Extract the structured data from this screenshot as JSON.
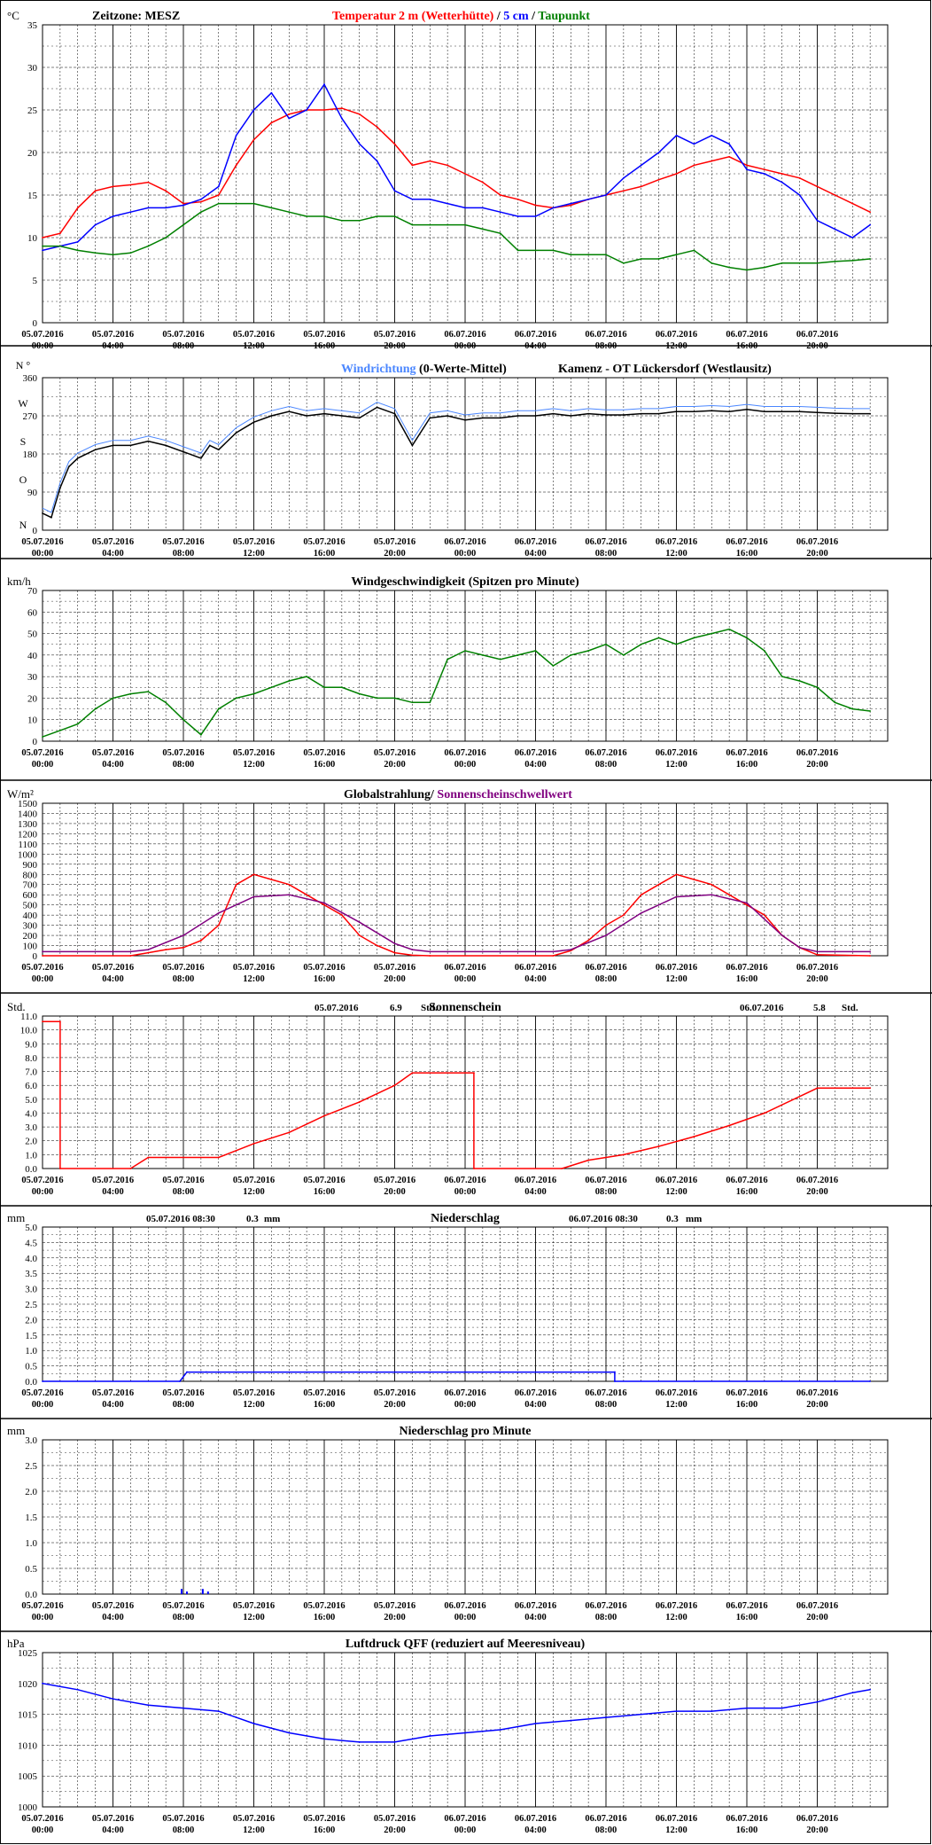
{
  "x_ticks": [
    {
      "date": "05.07.2016",
      "time": "00:00"
    },
    {
      "date": "05.07.2016",
      "time": "04:00"
    },
    {
      "date": "05.07.2016",
      "time": "08:00"
    },
    {
      "date": "05.07.2016",
      "time": "12:00"
    },
    {
      "date": "05.07.2016",
      "time": "16:00"
    },
    {
      "date": "05.07.2016",
      "time": "20:00"
    },
    {
      "date": "06.07.2016",
      "time": "00:00"
    },
    {
      "date": "06.07.2016",
      "time": "04:00"
    },
    {
      "date": "06.07.2016",
      "time": "08:00"
    },
    {
      "date": "06.07.2016",
      "time": "12:00"
    },
    {
      "date": "06.07.2016",
      "time": "16:00"
    },
    {
      "date": "06.07.2016",
      "time": "20:00"
    }
  ],
  "colors": {
    "red": "#ff0000",
    "blue": "#0000ff",
    "green": "#008000",
    "purple": "#800080",
    "black": "#000000",
    "lightblue": "#4a86ff"
  },
  "chart_data": [
    {
      "type": "line",
      "unit": "°C",
      "ylim": [
        0,
        35
      ],
      "yticks": [
        "0",
        "5",
        "10",
        "15",
        "20",
        "25",
        "30",
        "35"
      ],
      "grid": true,
      "timezone": "Zeitzone: MESZ",
      "title_parts": [
        {
          "text": "Temperatur 2 m (Wetterhütte)",
          "color": "#ff0000"
        },
        {
          "text": "/",
          "color": "#000000"
        },
        {
          "text": "5 cm",
          "color": "#0000ff"
        },
        {
          "text": "/",
          "color": "#000000"
        },
        {
          "text": "Taupunkt",
          "color": "#008000"
        }
      ],
      "series": [
        {
          "name": "Temperatur 2 m (Wetterhütte)",
          "color": "#ff0000",
          "x": [
            0,
            1,
            2,
            3,
            4,
            5,
            6,
            7,
            8,
            9,
            10,
            11,
            12,
            13,
            14,
            15,
            16,
            17,
            18,
            19,
            20,
            21,
            22,
            23,
            24,
            25,
            26,
            27,
            28,
            29,
            30,
            31,
            32,
            33,
            34,
            35,
            36,
            37,
            38,
            39,
            40,
            41,
            42,
            43,
            44,
            45,
            46,
            47
          ],
          "y": [
            10,
            10.5,
            13.5,
            15.5,
            16,
            16.2,
            16.5,
            15.5,
            14,
            14.2,
            15,
            18.5,
            21.5,
            23.5,
            24.5,
            25,
            25,
            25.2,
            24.5,
            23,
            21,
            18.5,
            19,
            18.5,
            17.5,
            16.5,
            15,
            14.5,
            13.8,
            13.5,
            13.8,
            14.5,
            15,
            15.5,
            16,
            16.8,
            17.5,
            18.5,
            19,
            19.5,
            18.5,
            18,
            17.5,
            17,
            16,
            15,
            14,
            13
          ]
        },
        {
          "name": "5 cm",
          "color": "#0000ff",
          "x": [
            0,
            1,
            2,
            3,
            4,
            5,
            6,
            7,
            8,
            9,
            10,
            11,
            12,
            13,
            14,
            15,
            16,
            17,
            18,
            19,
            20,
            21,
            22,
            23,
            24,
            25,
            26,
            27,
            28,
            29,
            30,
            31,
            32,
            33,
            34,
            35,
            36,
            37,
            38,
            39,
            40,
            41,
            42,
            43,
            44,
            45,
            46,
            47
          ],
          "y": [
            8.5,
            9,
            9.5,
            11.5,
            12.5,
            13,
            13.5,
            13.5,
            13.8,
            14.5,
            16,
            22,
            25,
            27,
            24,
            25,
            28,
            24,
            21,
            19,
            15.5,
            14.5,
            14.5,
            14,
            13.5,
            13.5,
            13,
            12.5,
            12.5,
            13.5,
            14,
            14.5,
            15,
            17,
            18.5,
            20,
            22,
            21,
            22,
            21,
            18,
            17.5,
            16.5,
            15,
            12,
            11,
            10,
            11.5
          ]
        },
        {
          "name": "Taupunkt",
          "color": "#008000",
          "x": [
            0,
            1,
            2,
            3,
            4,
            5,
            6,
            7,
            8,
            9,
            10,
            11,
            12,
            13,
            14,
            15,
            16,
            17,
            18,
            19,
            20,
            21,
            22,
            23,
            24,
            25,
            26,
            27,
            28,
            29,
            30,
            31,
            32,
            33,
            34,
            35,
            36,
            37,
            38,
            39,
            40,
            41,
            42,
            43,
            44,
            45,
            46,
            47
          ],
          "y": [
            9,
            9,
            8.5,
            8.2,
            8,
            8.2,
            9,
            10,
            11.5,
            13,
            14,
            14,
            14,
            13.5,
            13,
            12.5,
            12.5,
            12,
            12,
            12.5,
            12.5,
            11.5,
            11.5,
            11.5,
            11.5,
            11,
            10.5,
            8.5,
            8.5,
            8.5,
            8,
            8,
            8,
            7,
            7.5,
            7.5,
            8,
            8.5,
            7,
            6.5,
            6.2,
            6.5,
            7,
            7,
            7,
            7.2,
            7.3,
            7.5
          ]
        }
      ]
    },
    {
      "type": "line",
      "unit": "360",
      "ylim": [
        0,
        360
      ],
      "yticks": [
        "0",
        "90",
        "180",
        "270",
        "360"
      ],
      "ydirs": [
        "N",
        "O",
        "S",
        "W",
        "N °"
      ],
      "grid": true,
      "title_parts": [
        {
          "text": "Windrichtung",
          "color": "#4a86ff"
        },
        {
          "text": "(0-Werte-Mittel)",
          "color": "#000000"
        }
      ],
      "station": "Kamenz - OT Lückersdorf (Westlausitz)",
      "series": [
        {
          "name": "Windrichtung",
          "color": "#000000",
          "x": [
            0,
            0.5,
            1,
            1.5,
            2,
            3,
            4,
            5,
            6,
            7,
            8,
            9,
            9.5,
            10,
            11,
            12,
            13,
            14,
            15,
            16,
            17,
            18,
            19,
            20,
            21,
            22,
            23,
            24,
            25,
            26,
            27,
            28,
            29,
            30,
            31,
            32,
            33,
            34,
            35,
            36,
            37,
            38,
            39,
            40,
            41,
            42,
            43,
            44,
            45,
            46,
            47
          ],
          "y": [
            40,
            30,
            100,
            150,
            170,
            190,
            200,
            200,
            210,
            200,
            185,
            170,
            200,
            190,
            230,
            255,
            270,
            280,
            270,
            275,
            270,
            265,
            290,
            275,
            200,
            265,
            270,
            260,
            265,
            265,
            270,
            270,
            275,
            270,
            275,
            272,
            272,
            275,
            275,
            280,
            280,
            282,
            280,
            285,
            280,
            280,
            280,
            278,
            276,
            275,
            275
          ]
        }
      ]
    },
    {
      "type": "line",
      "unit": "km/h",
      "ylim": [
        0,
        70
      ],
      "yticks": [
        "0",
        "10",
        "20",
        "30",
        "40",
        "50",
        "60",
        "70"
      ],
      "grid": true,
      "title": "Windgeschwindigkeit (Spitzen pro Minute)",
      "series": [
        {
          "name": "Windgeschwindigkeit",
          "color": "#008000",
          "x": [
            0,
            1,
            2,
            3,
            4,
            5,
            6,
            7,
            8,
            9,
            10,
            11,
            12,
            13,
            14,
            15,
            16,
            17,
            18,
            19,
            20,
            21,
            22,
            23,
            24,
            25,
            26,
            27,
            28,
            29,
            30,
            31,
            32,
            33,
            34,
            35,
            36,
            37,
            38,
            39,
            40,
            41,
            42,
            43,
            44,
            45,
            46,
            47
          ],
          "y": [
            2,
            5,
            8,
            15,
            20,
            22,
            23,
            18,
            10,
            3,
            15,
            20,
            22,
            25,
            28,
            30,
            25,
            25,
            22,
            20,
            20,
            18,
            18,
            38,
            42,
            40,
            38,
            40,
            42,
            35,
            40,
            42,
            45,
            40,
            45,
            48,
            45,
            48,
            50,
            52,
            48,
            42,
            30,
            28,
            25,
            18,
            15,
            14
          ]
        }
      ]
    },
    {
      "type": "line",
      "unit": "W/m²",
      "ylim": [
        0,
        1500
      ],
      "yticks": [
        "0",
        "100",
        "200",
        "300",
        "400",
        "500",
        "600",
        "700",
        "800",
        "900",
        "1000",
        "1100",
        "1200",
        "1300",
        "1400",
        "1500"
      ],
      "grid": true,
      "title_parts": [
        {
          "text": "Globalstrahlung/",
          "color": "#000000"
        },
        {
          "text": "Sonnenscheinschwellwert",
          "color": "#800080"
        }
      ],
      "series": [
        {
          "name": "Globalstrahlung",
          "color": "#ff0000",
          "x": [
            0,
            5,
            6,
            7,
            8,
            9,
            10,
            11,
            12,
            13,
            14,
            15,
            16,
            17,
            18,
            19,
            20,
            21,
            22,
            29,
            30,
            31,
            32,
            33,
            34,
            35,
            36,
            37,
            38,
            39,
            40,
            41,
            42,
            43,
            44,
            47
          ],
          "y": [
            0,
            0,
            30,
            60,
            80,
            150,
            300,
            700,
            800,
            750,
            700,
            600,
            500,
            400,
            200,
            100,
            30,
            5,
            0,
            0,
            50,
            150,
            300,
            400,
            600,
            700,
            800,
            750,
            700,
            600,
            500,
            400,
            200,
            80,
            10,
            0
          ]
        },
        {
          "name": "Sonnenscheinschwellwert",
          "color": "#800080",
          "x": [
            0,
            5,
            6,
            8,
            10,
            12,
            14,
            16,
            18,
            20,
            21,
            22,
            29,
            30,
            32,
            34,
            36,
            38,
            40,
            42,
            43,
            44,
            47
          ],
          "y": [
            40,
            40,
            60,
            200,
            420,
            580,
            600,
            520,
            330,
            120,
            60,
            40,
            40,
            60,
            200,
            420,
            580,
            600,
            520,
            200,
            80,
            40,
            40
          ]
        }
      ]
    },
    {
      "type": "line",
      "unit": "Std.",
      "ylim": [
        0,
        11
      ],
      "yticks": [
        "0.0",
        "1.0",
        "2.0",
        "3.0",
        "4.0",
        "5.0",
        "6.0",
        "7.0",
        "8.0",
        "9.0",
        "10.0",
        "11.0"
      ],
      "grid": true,
      "title": "Sonnenschein",
      "header": [
        {
          "date": "05.07.2016",
          "value": "6.9",
          "unit": "Std."
        },
        {
          "date": "06.07.2016",
          "value": "5.8",
          "unit": "Std."
        }
      ],
      "series": [
        {
          "name": "Sonnenschein",
          "color": "#ff0000",
          "x": [
            0,
            1,
            1,
            5,
            6,
            10,
            12,
            14,
            16,
            18,
            20,
            21,
            24.5,
            24.5,
            29.5,
            31,
            33,
            35,
            37,
            39,
            41,
            44,
            47
          ],
          "y": [
            10.6,
            10.6,
            0,
            0,
            0.8,
            0.8,
            1.8,
            2.6,
            3.8,
            4.8,
            6.0,
            6.9,
            6.9,
            0,
            0,
            0.6,
            1.0,
            1.6,
            2.3,
            3.1,
            4.0,
            5.8,
            5.8
          ]
        }
      ]
    },
    {
      "type": "line",
      "unit": "mm",
      "ylim": [
        0,
        5
      ],
      "yticks": [
        "0.0",
        "0.5",
        "1.0",
        "1.5",
        "2.0",
        "2.5",
        "3.0",
        "3.5",
        "4.0",
        "4.5",
        "5.0"
      ],
      "grid": true,
      "title": "Niederschlag",
      "header": [
        {
          "date": "05.07.2016 08:30",
          "value": "0.3",
          "unit": "mm"
        },
        {
          "date": "06.07.2016 08:30",
          "value": "0.3",
          "unit": "mm"
        }
      ],
      "series": [
        {
          "name": "Niederschlag",
          "color": "#0000ff",
          "x": [
            0,
            7.8,
            8.2,
            9,
            9.3,
            10,
            32.5,
            32.5,
            47
          ],
          "y": [
            0,
            0,
            0.3,
            0.3,
            0.3,
            0.3,
            0.3,
            0,
            0
          ]
        }
      ]
    },
    {
      "type": "bar",
      "unit": "mm",
      "ylim": [
        0,
        3
      ],
      "yticks": [
        "0.0",
        "0.5",
        "1.0",
        "1.5",
        "2.0",
        "2.5",
        "3.0"
      ],
      "grid": true,
      "title": "Niederschlag pro Minute",
      "series": [
        {
          "name": "Niederschlag pro Minute",
          "color": "#0000ff",
          "x": [
            7.9,
            8.2,
            9.1,
            9.4
          ],
          "y": [
            0.1,
            0.05,
            0.1,
            0.05
          ]
        }
      ]
    },
    {
      "type": "line",
      "unit": "hPa",
      "ylim": [
        1000,
        1025
      ],
      "yticks": [
        "1000",
        "1005",
        "1010",
        "1015",
        "1020",
        "1025"
      ],
      "grid": true,
      "title": "Luftdruck QFF (reduziert auf Meeresniveau)",
      "series": [
        {
          "name": "Luftdruck QFF",
          "color": "#0000ff",
          "x": [
            0,
            2,
            4,
            6,
            8,
            10,
            12,
            14,
            16,
            18,
            20,
            22,
            24,
            26,
            28,
            30,
            32,
            34,
            36,
            38,
            40,
            42,
            44,
            46,
            47
          ],
          "y": [
            1020,
            1019,
            1017.5,
            1016.5,
            1016,
            1015.5,
            1013.5,
            1012,
            1011,
            1010.5,
            1010.5,
            1011.5,
            1012,
            1012.5,
            1013.5,
            1014,
            1014.5,
            1015,
            1015.5,
            1015.5,
            1016,
            1016,
            1017,
            1018.5,
            1019
          ]
        }
      ]
    }
  ]
}
